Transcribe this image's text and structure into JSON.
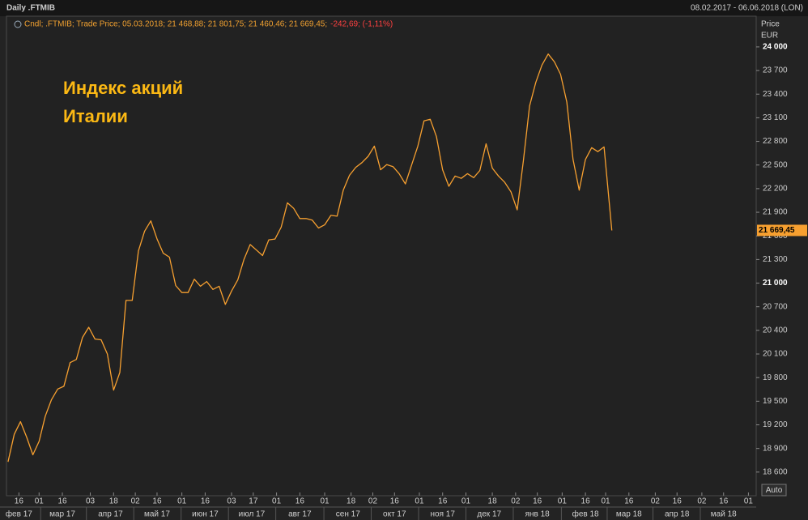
{
  "chart_data": {
    "type": "line",
    "title": "Daily .FTMIB",
    "date_range": "08.02.2017 - 06.06.2018 (LON)",
    "legend_text": "Cndl; .FTMIB; Trade Price; 05.03.2018; 21 468,88; 21 801,75; 21 460,46; 21 669,45;",
    "legend_change": "-242,69; (-1,11%)",
    "annotation": [
      "Индекс акций",
      "Италии"
    ],
    "y_axis_label": [
      "Price",
      "EUR"
    ],
    "y_axis_side": "right",
    "color": "#f7a030",
    "x": [
      "2017-02-09",
      "2017-02-13",
      "2017-02-17",
      "2017-02-21",
      "2017-02-25",
      "2017-03-01",
      "2017-03-05",
      "2017-03-09",
      "2017-03-13",
      "2017-03-17",
      "2017-03-21",
      "2017-03-25",
      "2017-03-29",
      "2017-04-02",
      "2017-04-06",
      "2017-04-10",
      "2017-04-14",
      "2017-04-18",
      "2017-04-22",
      "2017-04-26",
      "2017-04-30",
      "2017-05-04",
      "2017-05-08",
      "2017-05-12",
      "2017-05-16",
      "2017-05-20",
      "2017-05-24",
      "2017-05-28",
      "2017-06-01",
      "2017-06-05",
      "2017-06-09",
      "2017-06-13",
      "2017-06-17",
      "2017-06-21",
      "2017-06-25",
      "2017-06-29",
      "2017-07-03",
      "2017-07-07",
      "2017-07-11",
      "2017-07-15",
      "2017-07-19",
      "2017-07-23",
      "2017-07-27",
      "2017-07-31",
      "2017-08-04",
      "2017-08-08",
      "2017-08-12",
      "2017-08-16",
      "2017-08-20",
      "2017-08-24",
      "2017-08-28",
      "2017-09-01",
      "2017-09-05",
      "2017-09-09",
      "2017-09-13",
      "2017-09-17",
      "2017-09-21",
      "2017-09-25",
      "2017-09-29",
      "2017-10-03",
      "2017-10-07",
      "2017-10-11",
      "2017-10-15",
      "2017-10-19",
      "2017-10-23",
      "2017-10-27",
      "2017-10-31",
      "2017-11-04",
      "2017-11-08",
      "2017-11-12",
      "2017-11-16",
      "2017-11-20",
      "2017-11-24",
      "2017-11-28",
      "2017-12-02",
      "2017-12-06",
      "2017-12-10",
      "2017-12-14",
      "2017-12-18",
      "2017-12-22",
      "2017-12-26",
      "2017-12-30",
      "2018-01-03",
      "2018-01-07",
      "2018-01-11",
      "2018-01-15",
      "2018-01-19",
      "2018-01-23",
      "2018-01-27",
      "2018-01-31",
      "2018-02-04",
      "2018-02-08",
      "2018-02-12",
      "2018-02-16",
      "2018-02-20",
      "2018-02-24",
      "2018-02-28",
      "2018-03-05"
    ],
    "values": [
      18730,
      19080,
      19240,
      19045,
      18820,
      18990,
      19310,
      19520,
      19655,
      19690,
      19990,
      20030,
      20310,
      20440,
      20290,
      20280,
      20100,
      19640,
      19865,
      20780,
      20780,
      21410,
      21660,
      21790,
      21560,
      21380,
      21330,
      20970,
      20880,
      20880,
      21050,
      20960,
      21020,
      20920,
      20960,
      20730,
      20900,
      21040,
      21300,
      21490,
      21420,
      21350,
      21550,
      21560,
      21710,
      22020,
      21950,
      21820,
      21820,
      21800,
      21700,
      21740,
      21860,
      21850,
      22180,
      22370,
      22470,
      22530,
      22610,
      22740,
      22440,
      22505,
      22480,
      22390,
      22260,
      22500,
      22740,
      23060,
      23080,
      22860,
      22440,
      22230,
      22360,
      22330,
      22390,
      22340,
      22430,
      22770,
      22460,
      22360,
      22280,
      22160,
      21930,
      22550,
      23250,
      23550,
      23770,
      23910,
      23810,
      23650,
      23300,
      22570,
      22180,
      22570,
      22720,
      22670,
      22730,
      21669.45
    ],
    "xlim": [
      "2017-02-08",
      "2018-06-06"
    ],
    "ylim": [
      18300,
      24390
    ],
    "xticks": [
      {
        "value": "2017-02-16",
        "label": "16"
      },
      {
        "value": "2017-03-01",
        "label": "01"
      },
      {
        "value": "2017-03-16",
        "label": "16"
      },
      {
        "value": "2017-04-03",
        "label": "03"
      },
      {
        "value": "2017-04-18",
        "label": "18"
      },
      {
        "value": "2017-05-02",
        "label": "02"
      },
      {
        "value": "2017-05-16",
        "label": "16"
      },
      {
        "value": "2017-06-01",
        "label": "01"
      },
      {
        "value": "2017-06-16",
        "label": "16"
      },
      {
        "value": "2017-07-03",
        "label": "03"
      },
      {
        "value": "2017-07-17",
        "label": "17"
      },
      {
        "value": "2017-08-01",
        "label": "01"
      },
      {
        "value": "2017-08-16",
        "label": "16"
      },
      {
        "value": "2017-09-01",
        "label": "01"
      },
      {
        "value": "2017-09-18",
        "label": "18"
      },
      {
        "value": "2017-10-02",
        "label": "02"
      },
      {
        "value": "2017-10-16",
        "label": "16"
      },
      {
        "value": "2017-11-01",
        "label": "01"
      },
      {
        "value": "2017-11-16",
        "label": "16"
      },
      {
        "value": "2017-12-01",
        "label": "01"
      },
      {
        "value": "2017-12-18",
        "label": "18"
      },
      {
        "value": "2018-01-02",
        "label": "02"
      },
      {
        "value": "2018-01-16",
        "label": "16"
      },
      {
        "value": "2018-02-01",
        "label": "01"
      },
      {
        "value": "2018-02-16",
        "label": "16"
      },
      {
        "value": "2018-03-01",
        "label": "01"
      },
      {
        "value": "2018-03-16",
        "label": "16"
      },
      {
        "value": "2018-04-02",
        "label": "02"
      },
      {
        "value": "2018-04-16",
        "label": "16"
      },
      {
        "value": "2018-05-02",
        "label": "02"
      },
      {
        "value": "2018-05-16",
        "label": "16"
      },
      {
        "value": "2018-06-01",
        "label": "01"
      }
    ],
    "month_labels": [
      {
        "value": "2017-02-16",
        "label": "фев 17"
      },
      {
        "value": "2017-03-16",
        "label": "мар 17"
      },
      {
        "value": "2017-04-16",
        "label": "апр 17"
      },
      {
        "value": "2017-05-16",
        "label": "май 17"
      },
      {
        "value": "2017-06-16",
        "label": "июн 17"
      },
      {
        "value": "2017-07-16",
        "label": "июл 17"
      },
      {
        "value": "2017-08-16",
        "label": "авг 17"
      },
      {
        "value": "2017-09-16",
        "label": "сен 17"
      },
      {
        "value": "2017-10-16",
        "label": "окт 17"
      },
      {
        "value": "2017-11-16",
        "label": "ноя 17"
      },
      {
        "value": "2017-12-16",
        "label": "дек 17"
      },
      {
        "value": "2018-01-16",
        "label": "янв 18"
      },
      {
        "value": "2018-02-16",
        "label": "фев 18"
      },
      {
        "value": "2018-03-16",
        "label": "мар 18"
      },
      {
        "value": "2018-04-16",
        "label": "апр 18"
      },
      {
        "value": "2018-05-16",
        "label": "май 18"
      }
    ],
    "yticks": [
      {
        "value": 18600,
        "label": "18 600"
      },
      {
        "value": 18900,
        "label": "18 900"
      },
      {
        "value": 19200,
        "label": "19 200"
      },
      {
        "value": 19500,
        "label": "19 500"
      },
      {
        "value": 19800,
        "label": "19 800"
      },
      {
        "value": 20100,
        "label": "20 100"
      },
      {
        "value": 20400,
        "label": "20 400"
      },
      {
        "value": 20700,
        "label": "20 700"
      },
      {
        "value": 21000,
        "label": "21 000"
      },
      {
        "value": 21300,
        "label": "21 300"
      },
      {
        "value": 21600,
        "label": "21 600"
      },
      {
        "value": 21900,
        "label": "21 900"
      },
      {
        "value": 22200,
        "label": "22 200"
      },
      {
        "value": 22500,
        "label": "22 500"
      },
      {
        "value": 22800,
        "label": "22 800"
      },
      {
        "value": 23100,
        "label": "23 100"
      },
      {
        "value": 23400,
        "label": "23 400"
      },
      {
        "value": 23700,
        "label": "23 700"
      },
      {
        "value": 24000,
        "label": "24 000"
      }
    ],
    "last_price": {
      "value": 21669.45,
      "label": "21 669,45"
    },
    "button": "Auto"
  }
}
